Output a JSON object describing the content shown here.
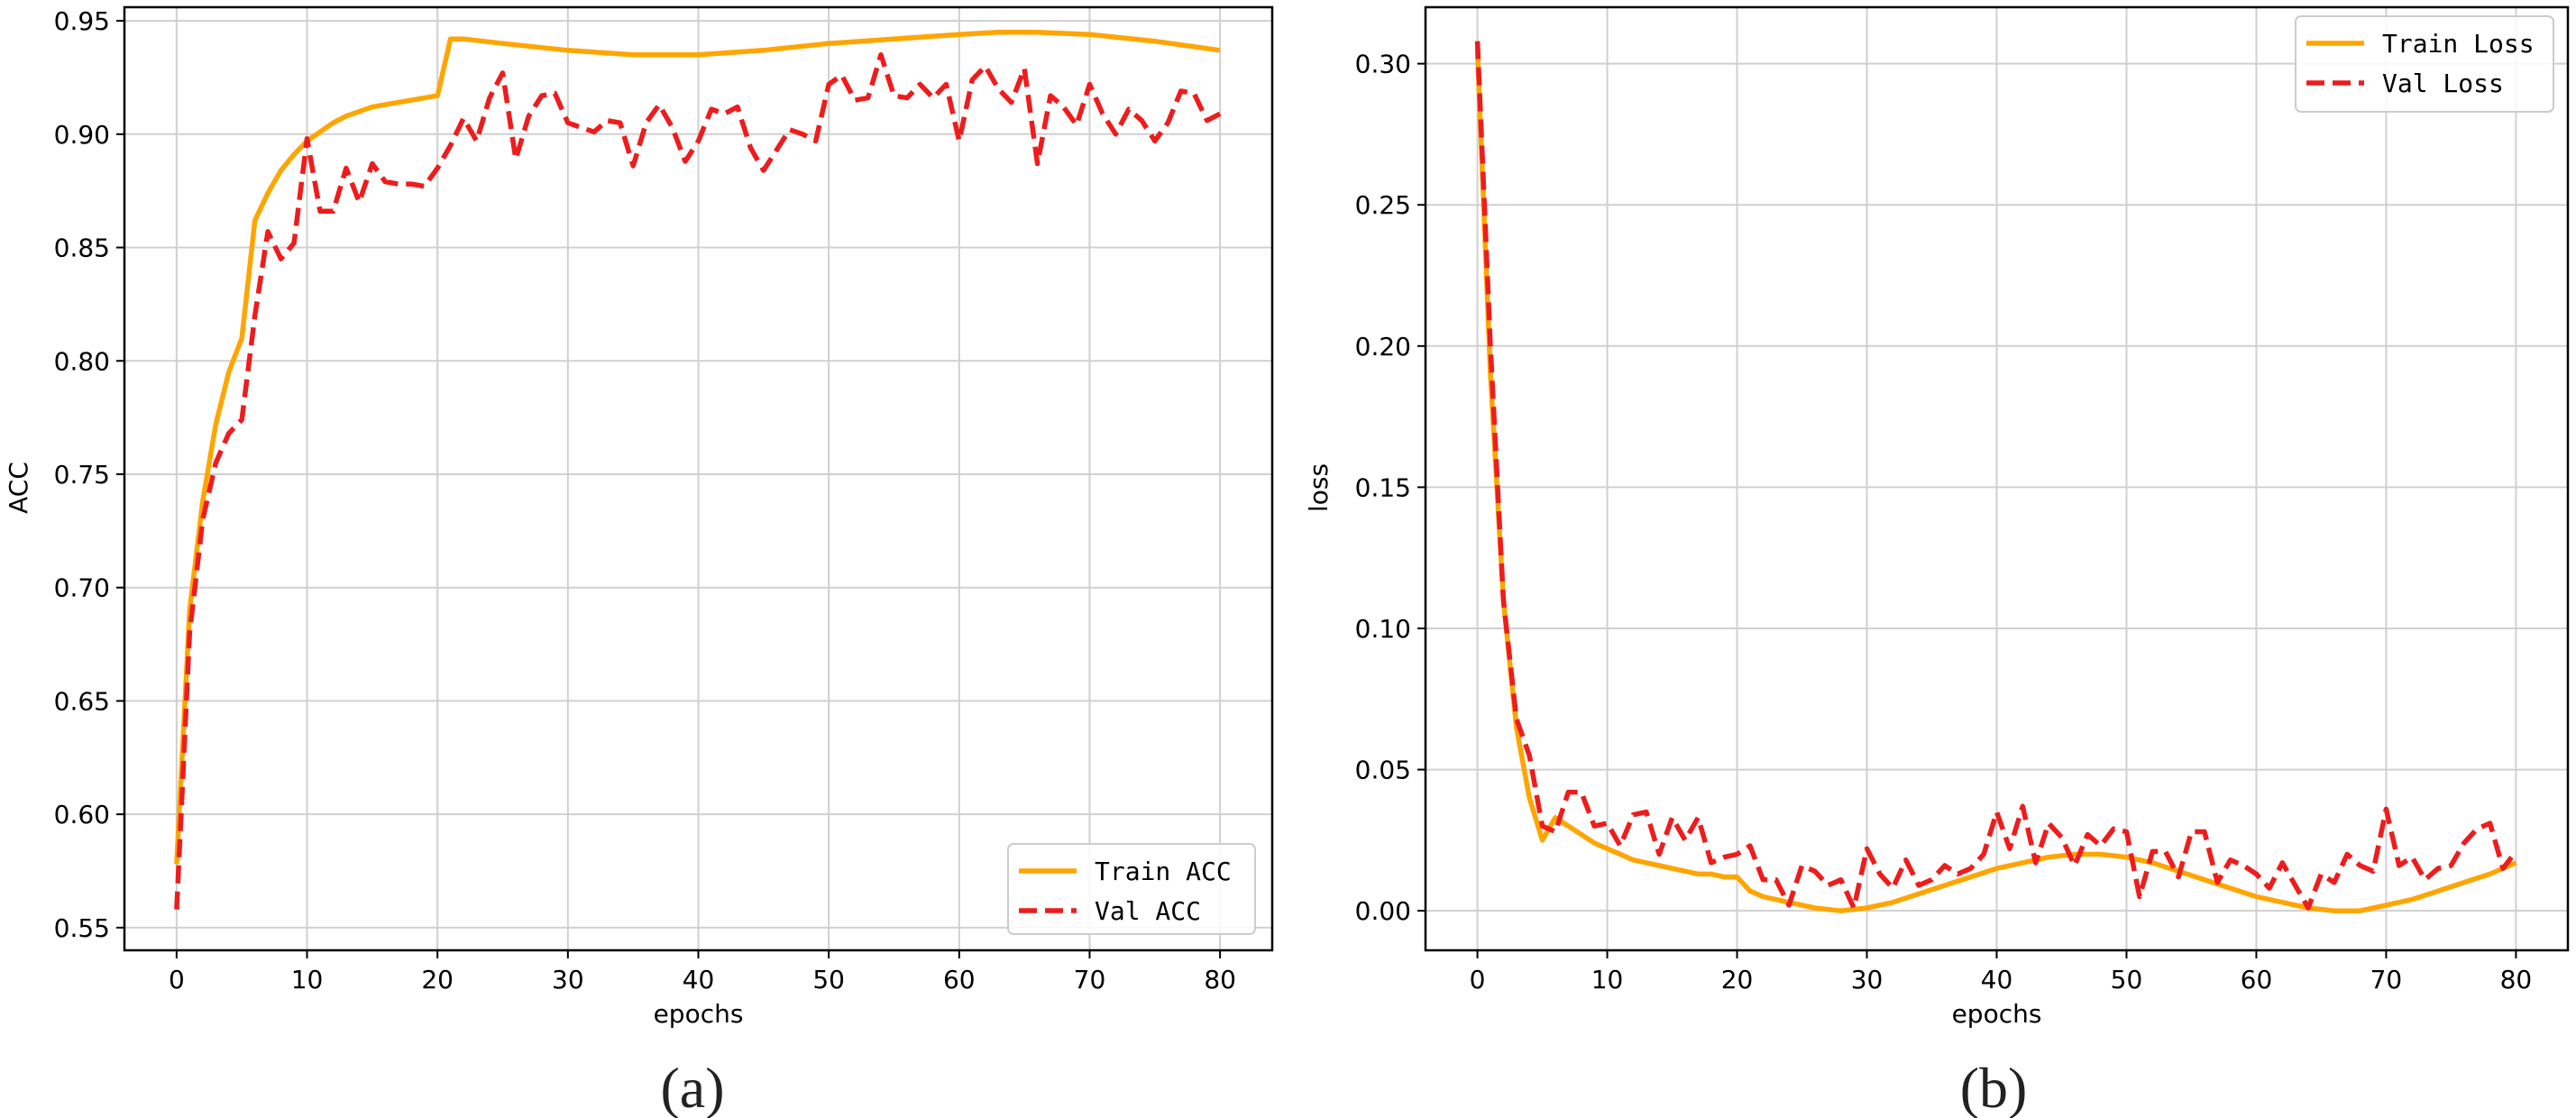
{
  "chart_data": [
    {
      "type": "line",
      "caption": "(a)",
      "xlabel": "epochs",
      "ylabel": "ACC",
      "xlim": [
        -4,
        84
      ],
      "ylim": [
        0.54,
        0.956
      ],
      "xticks": [
        0,
        10,
        20,
        30,
        40,
        50,
        60,
        70,
        80
      ],
      "yticks": [
        0.55,
        0.6,
        0.65,
        0.7,
        0.75,
        0.8,
        0.85,
        0.9,
        0.95
      ],
      "ytick_format": 2,
      "grid": true,
      "legend": "lower-right",
      "series": [
        {
          "name": "Train ACC",
          "color": "#ffa500",
          "style": "solid",
          "x": [
            0,
            1,
            2,
            3,
            4,
            5,
            6,
            7,
            8,
            9,
            10,
            11,
            12,
            13,
            14,
            15,
            16,
            17,
            18,
            19,
            20,
            21,
            22,
            25,
            30,
            35,
            40,
            45,
            50,
            55,
            60,
            63,
            66,
            70,
            75,
            80
          ],
          "y": [
            0.578,
            0.69,
            0.738,
            0.772,
            0.795,
            0.81,
            0.862,
            0.874,
            0.884,
            0.891,
            0.897,
            0.901,
            0.905,
            0.908,
            0.91,
            0.912,
            0.913,
            0.914,
            0.915,
            0.916,
            0.917,
            0.942,
            0.942,
            0.94,
            0.937,
            0.935,
            0.935,
            0.937,
            0.94,
            0.942,
            0.944,
            0.945,
            0.945,
            0.944,
            0.941,
            0.937
          ]
        },
        {
          "name": "Val ACC",
          "color": "#ee1c1c",
          "style": "dashed",
          "x": [
            0,
            1,
            2,
            3,
            4,
            5,
            6,
            7,
            8,
            9,
            10,
            11,
            12,
            13,
            14,
            15,
            16,
            17,
            18,
            19,
            20,
            21,
            22,
            23,
            24,
            25,
            26,
            27,
            28,
            29,
            30,
            31,
            32,
            33,
            34,
            35,
            36,
            37,
            38,
            39,
            40,
            41,
            42,
            43,
            44,
            45,
            46,
            47,
            48,
            49,
            50,
            51,
            52,
            53,
            54,
            55,
            56,
            57,
            58,
            59,
            60,
            61,
            62,
            63,
            64,
            65,
            66,
            67,
            68,
            69,
            70,
            71,
            72,
            73,
            74,
            75,
            76,
            77,
            78,
            79,
            80
          ],
          "y": [
            0.558,
            0.68,
            0.73,
            0.755,
            0.768,
            0.774,
            0.82,
            0.857,
            0.845,
            0.852,
            0.898,
            0.866,
            0.866,
            0.885,
            0.87,
            0.887,
            0.879,
            0.878,
            0.878,
            0.877,
            0.885,
            0.895,
            0.907,
            0.897,
            0.916,
            0.927,
            0.889,
            0.908,
            0.917,
            0.918,
            0.905,
            0.903,
            0.901,
            0.906,
            0.905,
            0.886,
            0.905,
            0.913,
            0.903,
            0.888,
            0.897,
            0.911,
            0.909,
            0.912,
            0.894,
            0.884,
            0.893,
            0.902,
            0.9,
            0.897,
            0.922,
            0.926,
            0.915,
            0.916,
            0.935,
            0.917,
            0.916,
            0.922,
            0.916,
            0.922,
            0.897,
            0.924,
            0.93,
            0.92,
            0.914,
            0.929,
            0.887,
            0.917,
            0.912,
            0.904,
            0.922,
            0.909,
            0.9,
            0.911,
            0.906,
            0.897,
            0.905,
            0.919,
            0.918,
            0.906,
            0.909
          ]
        }
      ]
    },
    {
      "type": "line",
      "caption": "(b)",
      "xlabel": "epochs",
      "ylabel": "loss",
      "xlim": [
        -4,
        84
      ],
      "ylim": [
        -0.014,
        0.32
      ],
      "xticks": [
        0,
        10,
        20,
        30,
        40,
        50,
        60,
        70,
        80
      ],
      "yticks": [
        0.0,
        0.05,
        0.1,
        0.15,
        0.2,
        0.25,
        0.3
      ],
      "ytick_format": 2,
      "grid": true,
      "legend": "top-right",
      "series": [
        {
          "name": "Train Loss",
          "color": "#ffa500",
          "style": "solid",
          "x": [
            0,
            1,
            2,
            3,
            4,
            5,
            6,
            7,
            8,
            9,
            10,
            11,
            12,
            13,
            14,
            15,
            16,
            17,
            18,
            19,
            20,
            21,
            22,
            24,
            26,
            28,
            30,
            32,
            34,
            36,
            38,
            40,
            42,
            44,
            46,
            48,
            50,
            52,
            54,
            56,
            58,
            60,
            62,
            64,
            66,
            68,
            70,
            72,
            74,
            76,
            78,
            80
          ],
          "y": [
            0.305,
            0.19,
            0.11,
            0.065,
            0.04,
            0.025,
            0.033,
            0.03,
            0.027,
            0.024,
            0.022,
            0.02,
            0.018,
            0.017,
            0.016,
            0.015,
            0.014,
            0.013,
            0.013,
            0.012,
            0.012,
            0.007,
            0.005,
            0.003,
            0.001,
            0.0,
            0.001,
            0.003,
            0.006,
            0.009,
            0.012,
            0.015,
            0.017,
            0.019,
            0.02,
            0.02,
            0.019,
            0.017,
            0.014,
            0.011,
            0.008,
            0.005,
            0.003,
            0.001,
            0.0,
            0.0,
            0.002,
            0.004,
            0.007,
            0.01,
            0.013,
            0.017
          ]
        },
        {
          "name": "Val Loss",
          "color": "#ee1c1c",
          "style": "dashed",
          "x": [
            0,
            1,
            2,
            3,
            4,
            5,
            6,
            7,
            8,
            9,
            10,
            11,
            12,
            13,
            14,
            15,
            16,
            17,
            18,
            19,
            20,
            21,
            22,
            23,
            24,
            25,
            26,
            27,
            28,
            29,
            30,
            31,
            32,
            33,
            34,
            35,
            36,
            37,
            38,
            39,
            40,
            41,
            42,
            43,
            44,
            45,
            46,
            47,
            48,
            49,
            50,
            51,
            52,
            53,
            54,
            55,
            56,
            57,
            58,
            59,
            60,
            61,
            62,
            63,
            64,
            65,
            66,
            67,
            68,
            69,
            70,
            71,
            72,
            73,
            74,
            75,
            76,
            77,
            78,
            79,
            80
          ],
          "y": [
            0.308,
            0.2,
            0.11,
            0.068,
            0.055,
            0.03,
            0.028,
            0.042,
            0.042,
            0.03,
            0.031,
            0.023,
            0.034,
            0.035,
            0.02,
            0.033,
            0.025,
            0.033,
            0.017,
            0.019,
            0.02,
            0.023,
            0.011,
            0.011,
            0.002,
            0.016,
            0.014,
            0.009,
            0.011,
            0.001,
            0.022,
            0.013,
            0.008,
            0.018,
            0.009,
            0.011,
            0.016,
            0.013,
            0.015,
            0.02,
            0.035,
            0.022,
            0.037,
            0.017,
            0.031,
            0.026,
            0.016,
            0.027,
            0.023,
            0.029,
            0.028,
            0.005,
            0.021,
            0.021,
            0.012,
            0.028,
            0.028,
            0.01,
            0.018,
            0.016,
            0.013,
            0.008,
            0.017,
            0.009,
            0.001,
            0.013,
            0.01,
            0.02,
            0.016,
            0.014,
            0.036,
            0.016,
            0.019,
            0.011,
            0.015,
            0.016,
            0.024,
            0.029,
            0.031,
            0.015,
            0.021
          ]
        }
      ]
    }
  ]
}
